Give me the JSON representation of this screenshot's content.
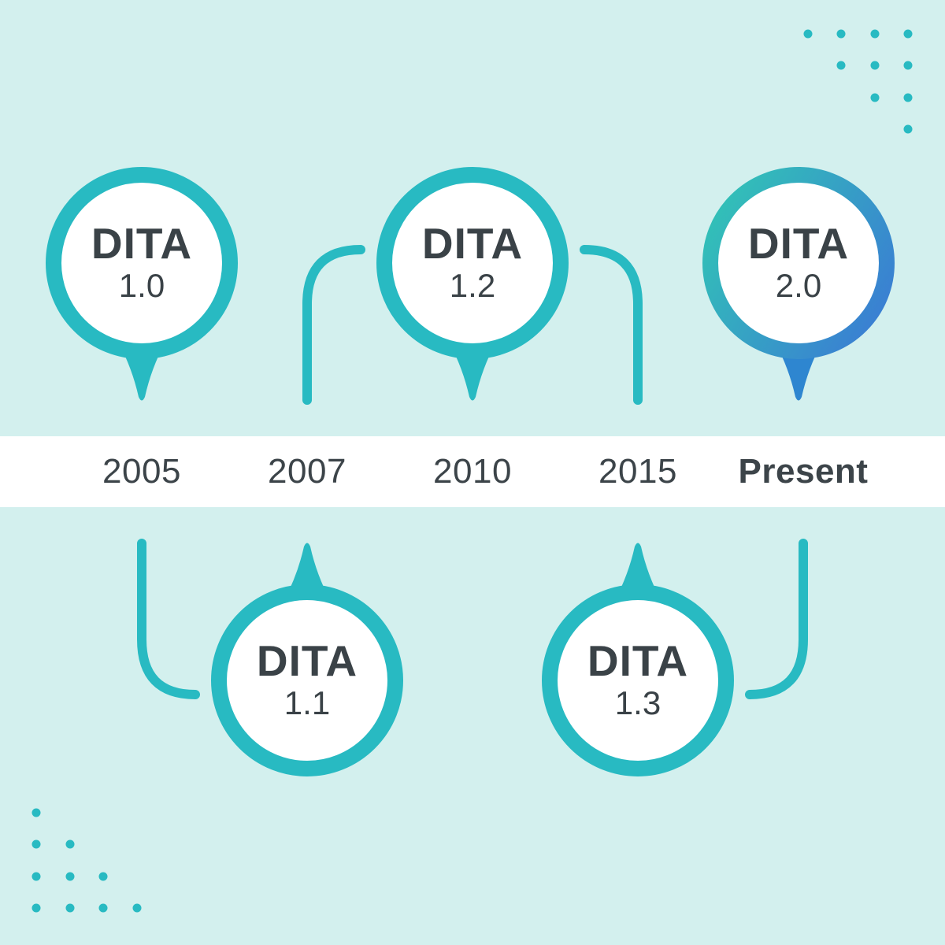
{
  "timeline": {
    "labels": [
      {
        "text": "2005",
        "emphasis": false
      },
      {
        "text": "2007",
        "emphasis": false
      },
      {
        "text": "2010",
        "emphasis": false
      },
      {
        "text": "2015",
        "emphasis": false
      },
      {
        "text": "Present",
        "emphasis": true
      }
    ]
  },
  "bubbles": [
    {
      "name": "DITA",
      "version": "1.0",
      "row": "top",
      "column": 0,
      "gradient": false
    },
    {
      "name": "DITA",
      "version": "1.1",
      "row": "bottom",
      "column": 1,
      "gradient": false
    },
    {
      "name": "DITA",
      "version": "1.2",
      "row": "top",
      "column": 2,
      "gradient": false
    },
    {
      "name": "DITA",
      "version": "1.3",
      "row": "bottom",
      "column": 3,
      "gradient": false
    },
    {
      "name": "DITA",
      "version": "2.0",
      "row": "top",
      "column": 4,
      "gradient": true
    }
  ],
  "colors": {
    "background": "#d3f0ee",
    "teal": "#28bac2",
    "blue": "#2e86d0",
    "gradient_start": "#32c1b7",
    "gradient_end": "#3a7ed3",
    "band": "#ffffff",
    "text_dark": "#3c4449"
  },
  "decorations": {
    "dot_color": "#28bac2",
    "dot_grids": [
      {
        "corner": "top-right",
        "rows": 4
      },
      {
        "corner": "bottom-left",
        "rows": 4
      }
    ]
  }
}
